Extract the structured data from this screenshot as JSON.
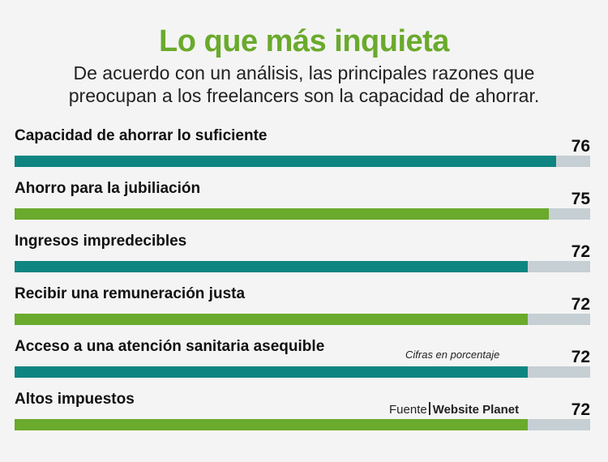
{
  "title": "Lo que más inquieta",
  "subtitle_lines": [
    "De acuerdo con un análisis, las principales razones que",
    "preocupan a los freelancers son la capacidad de ahorrar."
  ],
  "note": "Cifras en porcentaje",
  "source": {
    "label": "Fuente",
    "name": "Website Planet"
  },
  "colors": {
    "title": "#6aaa2c",
    "teal": "#0e8580",
    "green": "#6aaa2c",
    "track": "#c6cfd3"
  },
  "chart_data": {
    "type": "bar",
    "orientation": "horizontal",
    "title": "Lo que más inquieta",
    "unit_note": "Cifras en porcentaje",
    "xlim": [
      0,
      100
    ],
    "categories": [
      "Capacidad de ahorrar lo suficiente",
      "Ahorro para la jubiliación",
      "Ingresos impredecibles",
      "Recibir una remuneración justa",
      "Acceso a una atención sanitaria asequible",
      "Altos impuestos"
    ],
    "values": [
      76,
      75,
      72,
      72,
      72,
      72
    ],
    "bar_colors": [
      "#0e8580",
      "#6aaa2c",
      "#0e8580",
      "#6aaa2c",
      "#0e8580",
      "#6aaa2c"
    ]
  }
}
